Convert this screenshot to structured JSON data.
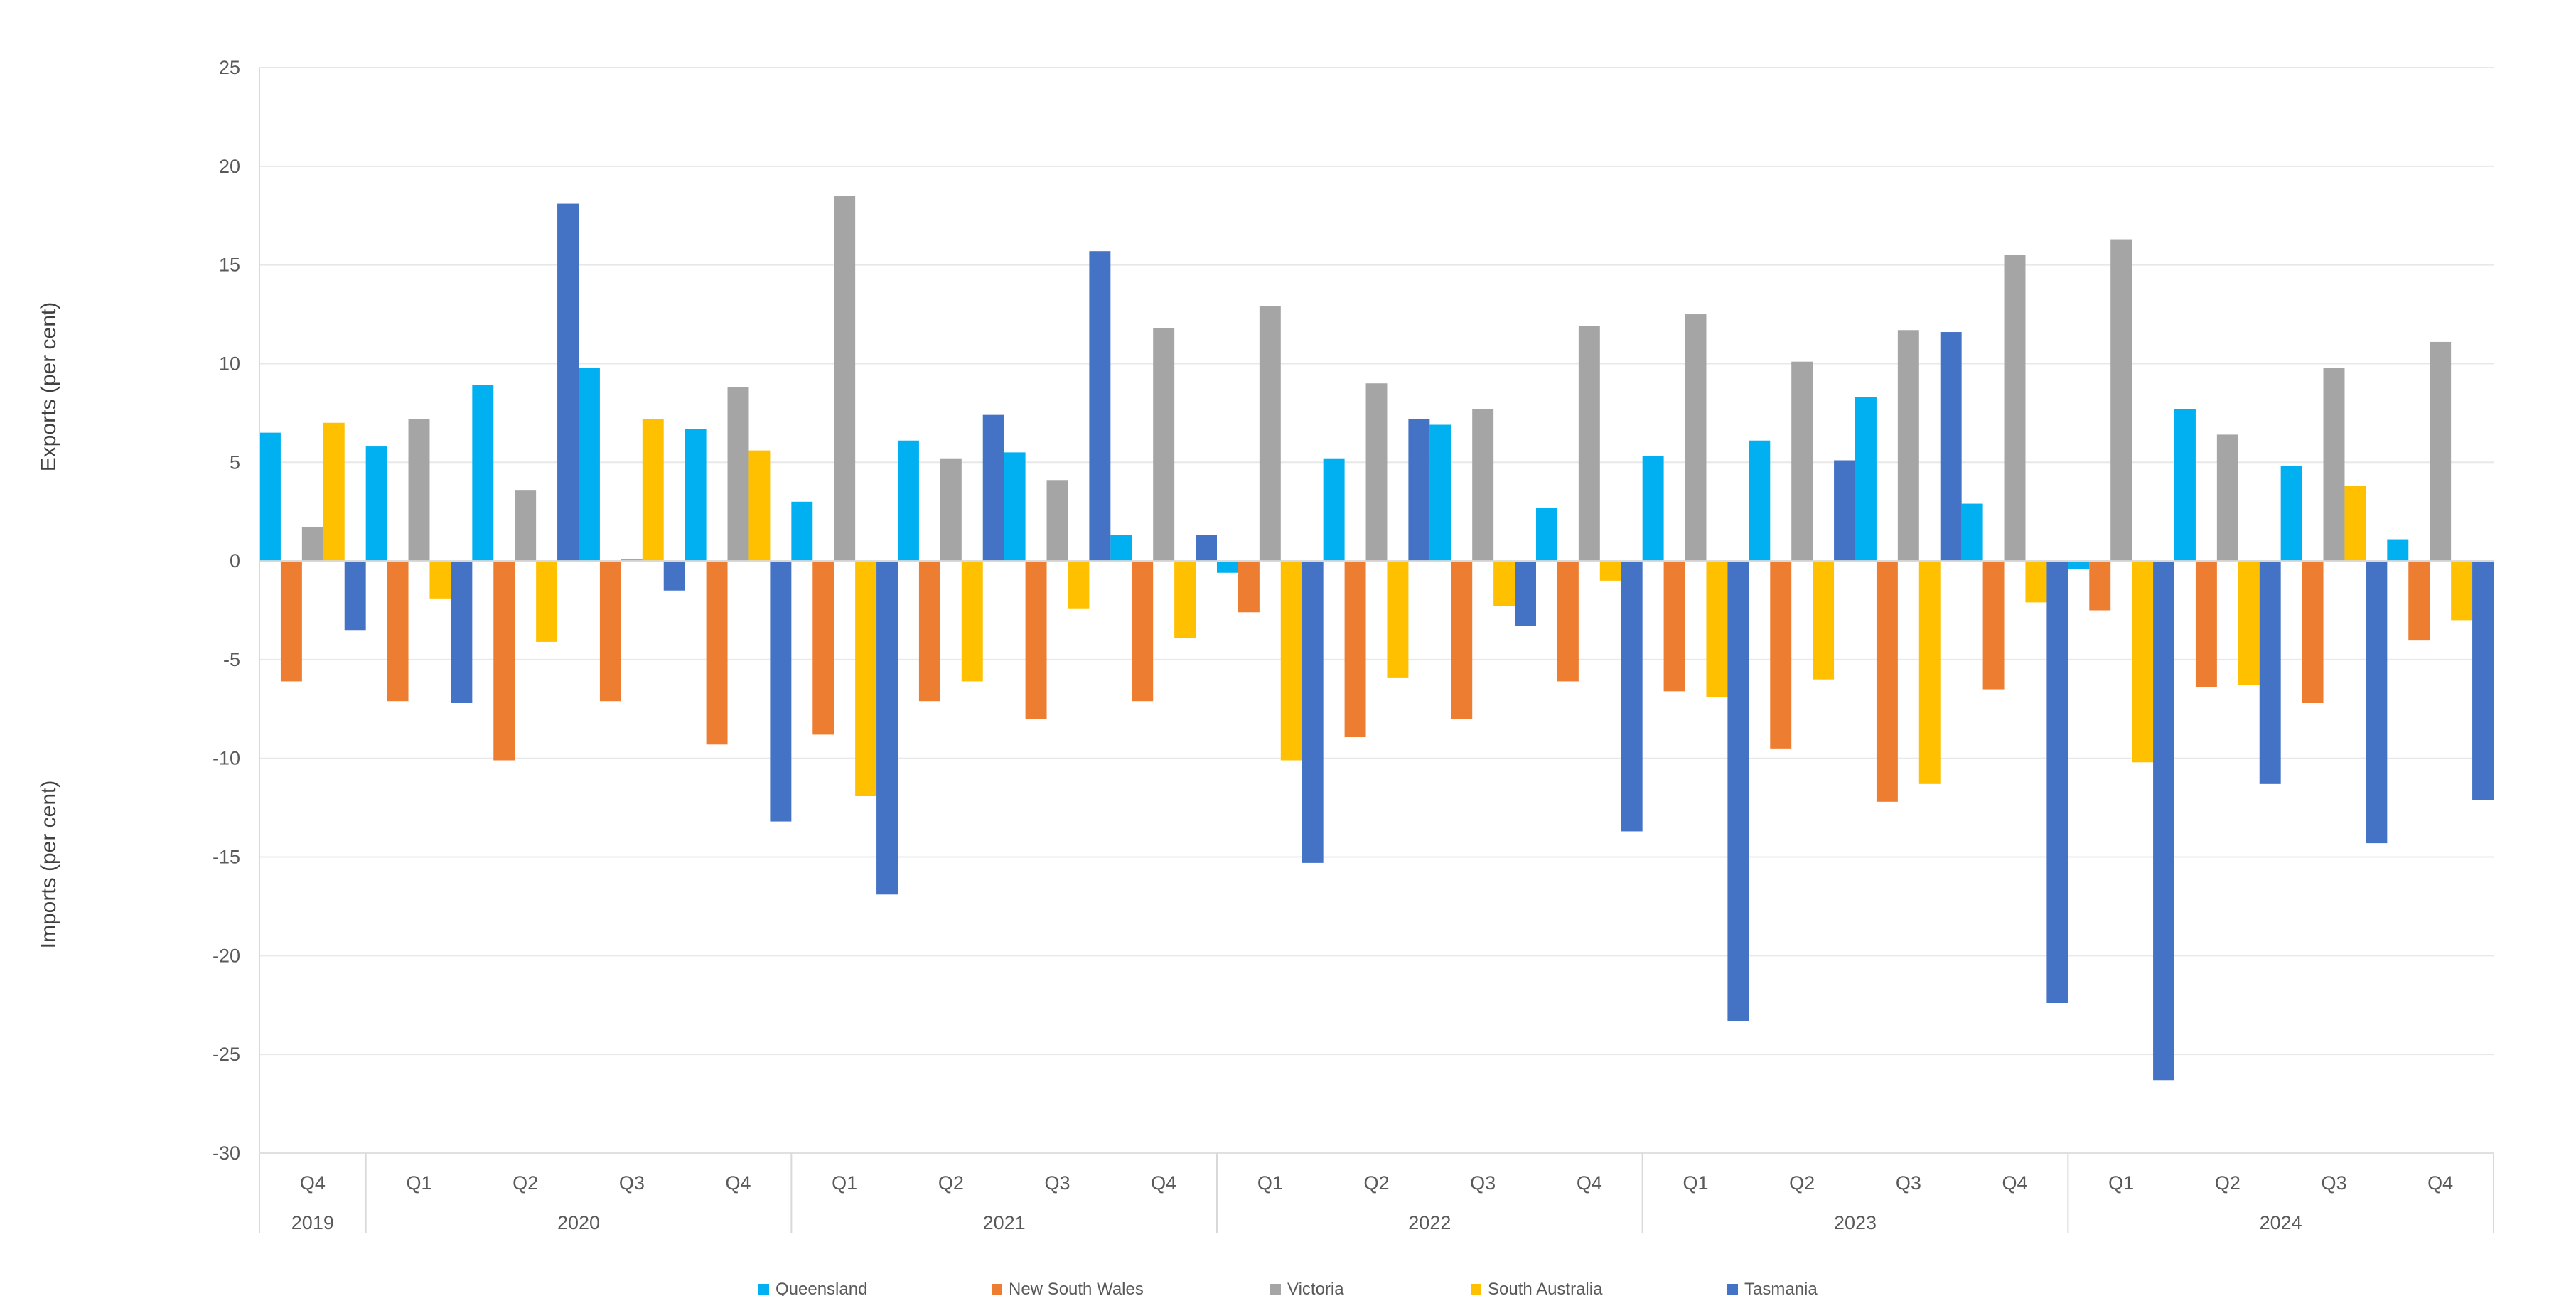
{
  "chart_data": {
    "type": "bar",
    "ylabel_top": "Exports (per cent)",
    "ylabel_bottom": "Imports (per cent)",
    "ylim": [
      -30,
      25
    ],
    "yticks": [
      25,
      20,
      15,
      10,
      5,
      0,
      -5,
      -10,
      -15,
      -20,
      -25,
      -30
    ],
    "grid": true,
    "legend_position": "bottom",
    "quarters": [
      "Q4",
      "Q1",
      "Q2",
      "Q3",
      "Q4",
      "Q1",
      "Q2",
      "Q3",
      "Q4",
      "Q1",
      "Q2",
      "Q3",
      "Q4",
      "Q1",
      "Q2",
      "Q3",
      "Q4",
      "Q1",
      "Q2",
      "Q3",
      "Q4"
    ],
    "year_groups": [
      {
        "label": "2019",
        "count": 1
      },
      {
        "label": "2020",
        "count": 4
      },
      {
        "label": "2021",
        "count": 4
      },
      {
        "label": "2022",
        "count": 4
      },
      {
        "label": "2023",
        "count": 4
      },
      {
        "label": "2024",
        "count": 4
      }
    ],
    "series": [
      {
        "name": "Queensland",
        "color": "#00B0F0",
        "values": [
          6.5,
          5.8,
          8.9,
          9.8,
          6.7,
          3.0,
          6.1,
          5.5,
          1.3,
          -0.6,
          5.2,
          6.9,
          2.7,
          5.3,
          6.1,
          8.3,
          2.9,
          -0.4,
          7.7,
          4.8,
          1.1
        ]
      },
      {
        "name": "New South Wales",
        "color": "#ED7D31",
        "values": [
          -6.1,
          -7.1,
          -10.1,
          -7.1,
          -9.3,
          -8.8,
          -7.1,
          -8.0,
          -7.1,
          -2.6,
          -8.9,
          -8.0,
          -6.1,
          -6.6,
          -9.5,
          -12.2,
          -6.5,
          -2.5,
          -6.4,
          -7.2,
          -4.0
        ]
      },
      {
        "name": "Victoria",
        "color": "#A5A5A5",
        "values": [
          1.7,
          7.2,
          3.6,
          0.1,
          8.8,
          18.5,
          5.2,
          4.1,
          11.8,
          12.9,
          9.0,
          7.7,
          11.9,
          12.5,
          10.1,
          11.7,
          15.5,
          16.3,
          6.4,
          9.8,
          11.1
        ]
      },
      {
        "name": "South Australia",
        "color": "#FFC000",
        "values": [
          7.0,
          -1.9,
          -4.1,
          7.2,
          5.6,
          -11.9,
          -6.1,
          -2.4,
          -3.9,
          -10.1,
          -5.9,
          -2.3,
          -1.0,
          -6.9,
          -6.0,
          -11.3,
          -2.1,
          -10.2,
          -6.3,
          3.8,
          -3.0
        ]
      },
      {
        "name": "Tasmania",
        "color": "#4472C4",
        "values": [
          -3.5,
          -7.2,
          18.1,
          -1.5,
          -13.2,
          -16.9,
          7.4,
          15.7,
          1.3,
          -15.3,
          7.2,
          -3.3,
          -13.7,
          -23.3,
          5.1,
          11.6,
          -22.4,
          -26.3,
          -11.3,
          -14.3,
          -12.1
        ]
      }
    ]
  }
}
